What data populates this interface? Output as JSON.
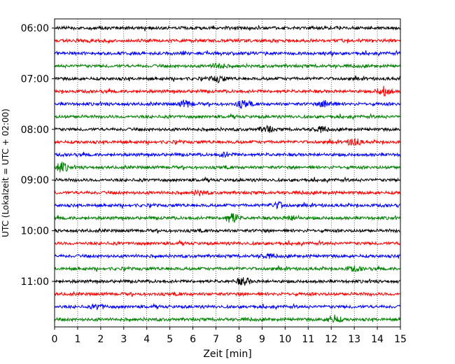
{
  "chart_data": {
    "type": "line",
    "title": "",
    "xlabel": "Zeit  [min]",
    "ylabel": "UTC (Lokalzeit = UTC + 02:00)",
    "xlim": [
      0,
      15
    ],
    "x_ticks": [
      "0",
      "1",
      "2",
      "3",
      "4",
      "5",
      "6",
      "7",
      "8",
      "9",
      "10",
      "11",
      "12",
      "13",
      "14",
      "15"
    ],
    "y_tick_labels": [
      {
        "label": "06:00",
        "row": 0
      },
      {
        "label": "07:00",
        "row": 4
      },
      {
        "label": "08:00",
        "row": 8
      },
      {
        "label": "09:00",
        "row": 12
      },
      {
        "label": "10:00",
        "row": 16
      },
      {
        "label": "11:00",
        "row": 20
      }
    ],
    "row_count": 24,
    "row_minutes": 15,
    "grid": "vertical-dotted",
    "colors": [
      "#000000",
      "#ff0000",
      "#0000ff",
      "#008000"
    ],
    "events": [
      {
        "row": 3,
        "minute": 7.1,
        "amp": 0.5
      },
      {
        "row": 4,
        "minute": 7.1,
        "amp": 0.6
      },
      {
        "row": 5,
        "minute": 14.3,
        "amp": 0.9
      },
      {
        "row": 6,
        "minute": 5.7,
        "amp": 0.7
      },
      {
        "row": 6,
        "minute": 8.2,
        "amp": 0.7
      },
      {
        "row": 6,
        "minute": 11.8,
        "amp": 0.8
      },
      {
        "row": 8,
        "minute": 9.2,
        "amp": 0.6
      },
      {
        "row": 8,
        "minute": 11.5,
        "amp": 0.5
      },
      {
        "row": 9,
        "minute": 13.0,
        "amp": 0.7
      },
      {
        "row": 10,
        "minute": 7.4,
        "amp": 0.4
      },
      {
        "row": 11,
        "minute": 0.3,
        "amp": 0.9
      },
      {
        "row": 13,
        "minute": 6.3,
        "amp": 0.4
      },
      {
        "row": 14,
        "minute": 9.7,
        "amp": 0.6
      },
      {
        "row": 15,
        "minute": 7.7,
        "amp": 1.1
      },
      {
        "row": 15,
        "minute": 10.3,
        "amp": 0.4
      },
      {
        "row": 18,
        "minute": 9.2,
        "amp": 0.4
      },
      {
        "row": 19,
        "minute": 13.0,
        "amp": 0.4
      },
      {
        "row": 20,
        "minute": 8.2,
        "amp": 0.7
      },
      {
        "row": 22,
        "minute": 1.9,
        "amp": 0.4
      },
      {
        "row": 23,
        "minute": 12.1,
        "amp": 0.8
      }
    ]
  }
}
